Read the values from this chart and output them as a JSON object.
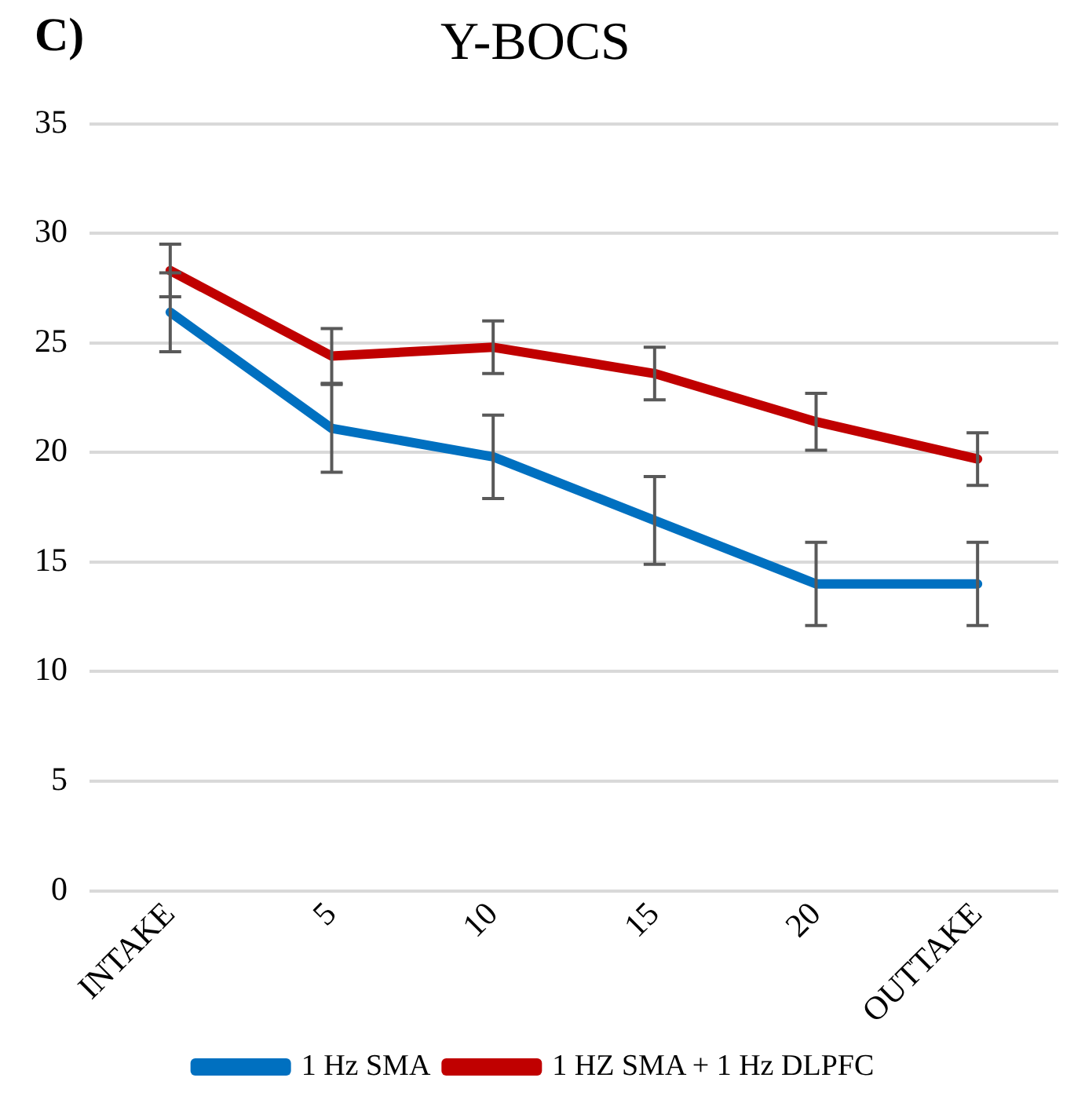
{
  "chart_data": {
    "type": "line",
    "title": "Y-BOCS",
    "annotations": [
      "C)"
    ],
    "categories": [
      "INTAKE",
      "5",
      "10",
      "15",
      "20",
      "OUTTAKE"
    ],
    "series": [
      {
        "name": "1 Hz SMA",
        "color": "#0070c0",
        "values": [
          26.4,
          21.1,
          19.8,
          16.9,
          14.0,
          14.0
        ],
        "errors": [
          1.8,
          2.0,
          1.9,
          2.0,
          1.9,
          1.9
        ]
      },
      {
        "name": "1 HZ SMA + 1 Hz DLPFC",
        "color": "#c00000",
        "values": [
          28.3,
          24.4,
          24.8,
          23.6,
          21.4,
          19.7
        ],
        "errors": [
          1.2,
          1.25,
          1.2,
          1.2,
          1.3,
          1.2
        ]
      }
    ],
    "ylim": [
      0,
      35
    ],
    "yticks": [
      0,
      5,
      10,
      15,
      20,
      25,
      30,
      35
    ],
    "grid": "y",
    "legend": "bottom",
    "marker": "none",
    "line_style": "solid"
  }
}
